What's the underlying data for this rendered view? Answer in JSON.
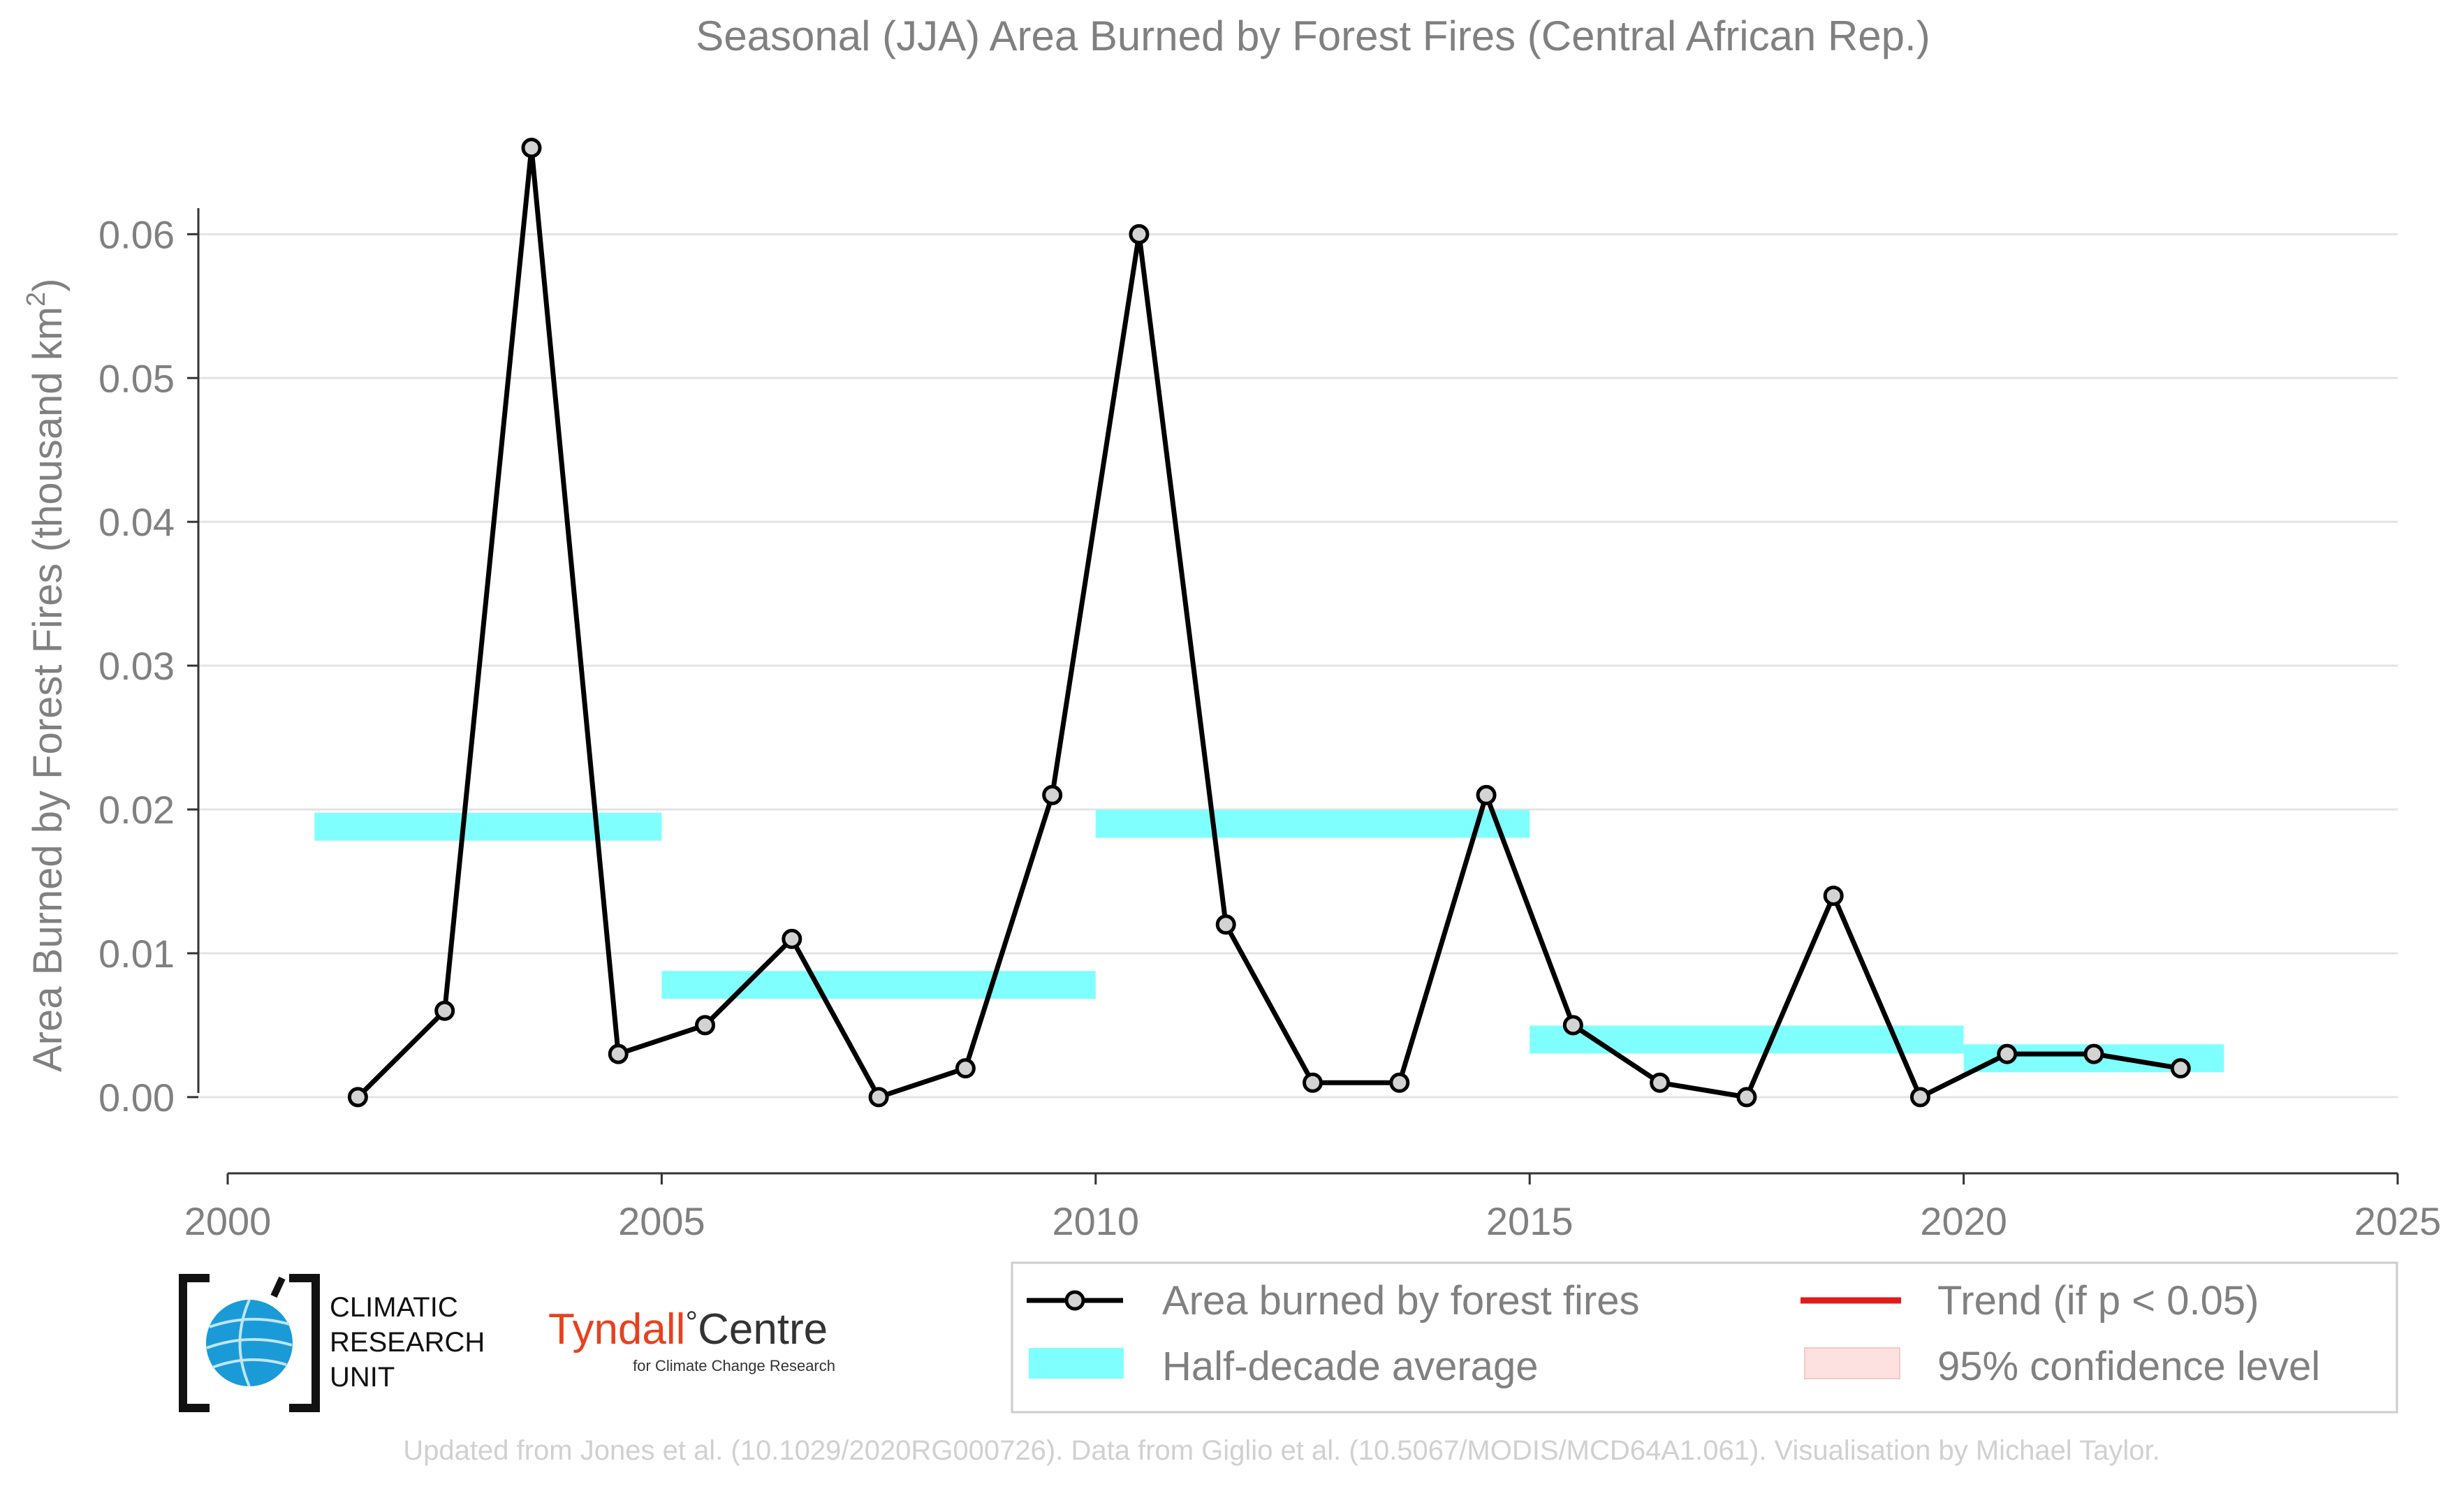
{
  "chart_data": {
    "type": "line",
    "title": "Seasonal (JJA) Area Burned by Forest Fires (Central African Rep.)",
    "xlabel": "",
    "ylabel": "Area Burned by Forest Fires (thousand km",
    "ylabel_superscript": "2",
    "ylabel_suffix": ")",
    "xlim": [
      2000,
      2025
    ],
    "ylim": [
      -0.0053,
      0.069
    ],
    "x_ticks": [
      2000,
      2005,
      2010,
      2015,
      2020,
      2025
    ],
    "x_tick_labels": [
      "2000",
      "2005",
      "2010",
      "2015",
      "2020",
      "2025"
    ],
    "y_ticks": [
      0.0,
      0.01,
      0.02,
      0.03,
      0.04,
      0.05,
      0.06
    ],
    "y_tick_labels": [
      "0.00",
      "0.01",
      "0.02",
      "0.03",
      "0.04",
      "0.05",
      "0.06"
    ],
    "grid": "horizontal",
    "series": [
      {
        "name": "Area burned by forest fires",
        "x": [
          2001.5,
          2002.5,
          2003.5,
          2004.5,
          2005.5,
          2006.5,
          2007.5,
          2008.5,
          2009.5,
          2010.5,
          2011.5,
          2012.5,
          2013.5,
          2014.5,
          2015.5,
          2016.5,
          2017.5,
          2018.5,
          2019.5,
          2020.5,
          2021.5,
          2022.5
        ],
        "values": [
          0.0,
          0.006,
          0.066,
          0.003,
          0.005,
          0.011,
          0.0,
          0.002,
          0.021,
          0.06,
          0.012,
          0.001,
          0.001,
          0.021,
          0.005,
          0.001,
          0.0,
          0.014,
          0.0,
          0.003,
          0.003,
          0.002
        ],
        "color": "#000000",
        "marker_fill": "#d3d3d3"
      }
    ],
    "half_decade_averages": [
      {
        "x_start": 2001,
        "x_end": 2005,
        "value": 0.0188
      },
      {
        "x_start": 2005,
        "x_end": 2010,
        "value": 0.0078
      },
      {
        "x_start": 2010,
        "x_end": 2015,
        "value": 0.019
      },
      {
        "x_start": 2015,
        "x_end": 2020,
        "value": 0.004
      },
      {
        "x_start": 2020,
        "x_end": 2023,
        "value": 0.0027
      }
    ],
    "band_color": "#80ffff",
    "legend": {
      "placement": "bottom-right",
      "entries": [
        {
          "label": "Area burned by forest fires",
          "kind": "line-marker",
          "color": "#000000"
        },
        {
          "label": "Trend (if p < 0.05)",
          "kind": "line",
          "color": "#e31a1c"
        },
        {
          "label": "Half-decade average",
          "kind": "band",
          "color": "#80ffff"
        },
        {
          "label": "95% confidence level",
          "kind": "band",
          "color": "#fde0e0"
        }
      ]
    }
  },
  "logos": {
    "cru": {
      "line1": "CLIMATIC",
      "line2": "RESEARCH",
      "line3": "UNIT"
    },
    "tyndall": {
      "name": "Tyndall",
      "degree": "°",
      "centre": "Centre",
      "subtitle": "for Climate Change Research",
      "color": "#e8411e"
    }
  },
  "footer": {
    "credit": "Updated from Jones et al. (10.1029/2020RG000726). Data from Giglio et al. (10.5067/MODIS/MCD64A1.061). Visualisation by Michael Taylor."
  }
}
